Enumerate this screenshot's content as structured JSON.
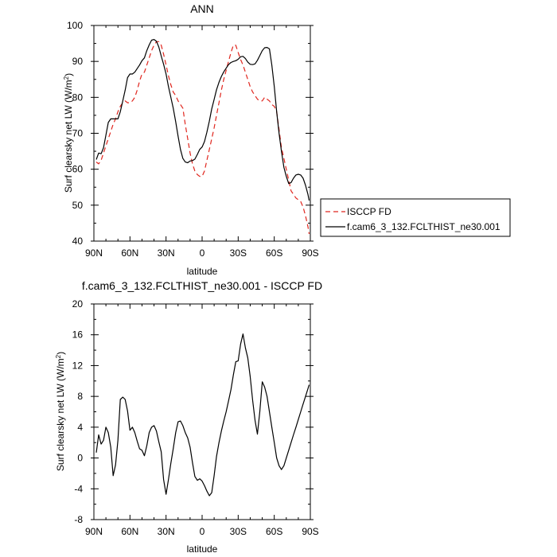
{
  "chart_data": [
    {
      "type": "line",
      "title": "ANN",
      "xlabel": "latitude",
      "ylabel": "Surf clearsky net LW (W/m²)",
      "ylabel_main": "Surf clearsky net LW (W/m",
      "ylabel_sup": "2",
      "ylabel_close": ")",
      "xlim": [
        90,
        -90
      ],
      "ylim": [
        40,
        100
      ],
      "x_ticks": [
        90,
        60,
        30,
        0,
        -30,
        -60,
        -90
      ],
      "x_tick_labels": [
        "90N",
        "60N",
        "30N",
        "0",
        "30S",
        "60S",
        "90S"
      ],
      "y_ticks": [
        40,
        50,
        60,
        70,
        80,
        90,
        100
      ],
      "y_tick_labels": [
        "40",
        "50",
        "60",
        "70",
        "80",
        "90",
        "100"
      ],
      "legend": {
        "placement": "right",
        "entries": [
          "ISCCP FD",
          "f.cam6_3_132.FCLTHIST_ne30.001"
        ]
      },
      "series": [
        {
          "name": "ISCCP FD",
          "color": "#e0261e",
          "dash": true,
          "x": [
            88,
            86,
            84,
            82,
            80,
            78,
            76,
            74,
            72,
            70,
            68,
            66,
            64,
            62,
            60,
            58,
            56,
            54,
            52,
            50,
            48,
            46,
            44,
            42,
            40,
            38,
            36,
            34,
            32,
            30,
            28,
            26,
            24,
            22,
            20,
            18,
            16,
            14,
            12,
            10,
            8,
            6,
            4,
            2,
            0,
            -2,
            -4,
            -6,
            -8,
            -10,
            -12,
            -14,
            -16,
            -18,
            -20,
            -22,
            -24,
            -26,
            -28,
            -30,
            -32,
            -34,
            -36,
            -38,
            -40,
            -42,
            -44,
            -46,
            -48,
            -50,
            -52,
            -54,
            -56,
            -58,
            -60,
            -62,
            -64,
            -66,
            -68,
            -70,
            -72,
            -74,
            -76,
            -78,
            -80,
            -82,
            -84,
            -86,
            -88,
            -89
          ],
          "y": [
            62,
            61.5,
            62.5,
            64.5,
            66.5,
            68.5,
            70.5,
            72.5,
            74,
            76,
            77.5,
            78.5,
            79,
            78.5,
            78.5,
            79,
            80,
            82,
            84.5,
            86.5,
            87,
            89,
            91,
            93,
            94.5,
            95.5,
            95.5,
            94.5,
            92,
            89,
            86,
            83.5,
            81.5,
            80.5,
            79,
            78,
            77,
            72.5,
            68.5,
            64.5,
            61.5,
            59.5,
            58.5,
            58,
            58,
            59.5,
            62.5,
            65.5,
            68.5,
            71.5,
            75,
            78.5,
            82,
            85,
            87.5,
            90,
            92.5,
            94.5,
            94.5,
            92.5,
            90.5,
            89,
            87,
            85,
            83,
            81.5,
            80.5,
            79.5,
            79,
            79,
            80,
            79.5,
            79,
            78,
            77.5,
            76,
            71,
            66,
            63,
            60,
            57,
            54,
            53,
            52,
            51.5,
            51,
            49.5,
            47,
            44,
            42
          ]
        },
        {
          "name": "f.cam6_3_132.FCLTHIST_ne30.001",
          "color": "#000000",
          "dash": false,
          "x": [
            88,
            86,
            84,
            82,
            80,
            78,
            76,
            74,
            72,
            70,
            68,
            66,
            64,
            62,
            60,
            58,
            56,
            54,
            52,
            50,
            48,
            46,
            44,
            42,
            40,
            38,
            36,
            34,
            32,
            30,
            28,
            26,
            24,
            22,
            20,
            18,
            16,
            14,
            12,
            10,
            8,
            6,
            4,
            2,
            0,
            -2,
            -4,
            -6,
            -8,
            -10,
            -12,
            -14,
            -16,
            -18,
            -20,
            -22,
            -24,
            -26,
            -28,
            -30,
            -32,
            -34,
            -36,
            -38,
            -40,
            -42,
            -44,
            -46,
            -48,
            -50,
            -52,
            -54,
            -56,
            -58,
            -60,
            -62,
            -64,
            -66,
            -68,
            -70,
            -72,
            -74,
            -76,
            -78,
            -80,
            -82,
            -84,
            -86,
            -88,
            -89
          ],
          "y": [
            62.7,
            64.5,
            64.3,
            66,
            69.5,
            73,
            74,
            74,
            74,
            74,
            76,
            79,
            82,
            85.5,
            86.5,
            86.5,
            87,
            88,
            89,
            90.2,
            91,
            93,
            94.6,
            95.9,
            96.1,
            95.6,
            94,
            91.5,
            89.2,
            86.5,
            83,
            80,
            77,
            73.2,
            69.2,
            65.5,
            63,
            62,
            61.8,
            62.3,
            62.4,
            62.8,
            64.1,
            65.5,
            66.2,
            67.7,
            70.3,
            73.4,
            76.8,
            79.4,
            82.1,
            84.2,
            85.8,
            87.1,
            88.1,
            89.1,
            89.7,
            90,
            90.2,
            90.6,
            91.3,
            91.4,
            90.8,
            89.8,
            89.2,
            89.1,
            89.3,
            90.3,
            91.6,
            93,
            93.8,
            93.9,
            93.5,
            89,
            83,
            76,
            70,
            65,
            60.5,
            58,
            56,
            56.3,
            57.5,
            58.4,
            58.6,
            58.4,
            57.5,
            55.5,
            53,
            51.3
          ]
        }
      ]
    },
    {
      "type": "line",
      "title": "f.cam6_3_132.FCLTHIST_ne30.001 - ISCCP FD",
      "xlabel": "latitude",
      "ylabel": "Surf clearsky net LW (W/m²)",
      "ylabel_main": "Surf clearsky net LW (W/m",
      "ylabel_sup": "2",
      "ylabel_close": ")",
      "xlim": [
        90,
        -90
      ],
      "ylim": [
        -8,
        20
      ],
      "x_ticks": [
        90,
        60,
        30,
        0,
        -30,
        -60,
        -90
      ],
      "x_tick_labels": [
        "90N",
        "60N",
        "30N",
        "0",
        "30S",
        "60S",
        "90S"
      ],
      "y_ticks": [
        -8,
        -4,
        0,
        4,
        8,
        12,
        16,
        20
      ],
      "y_tick_labels": [
        "-8",
        "-4",
        "0",
        "4",
        "8",
        "12",
        "16",
        "20"
      ],
      "series": [
        {
          "color": "#000000",
          "dash": false,
          "x": [
            88,
            86,
            84,
            82,
            80,
            78,
            76,
            74,
            72,
            70,
            68,
            66,
            64,
            62,
            60,
            58,
            56,
            54,
            52,
            50,
            48,
            46,
            44,
            42,
            40,
            38,
            36,
            34,
            32,
            30,
            28,
            26,
            24,
            22,
            20,
            18,
            16,
            14,
            12,
            10,
            8,
            6,
            4,
            2,
            0,
            -2,
            -4,
            -6,
            -8,
            -10,
            -12,
            -14,
            -16,
            -18,
            -20,
            -22,
            -24,
            -26,
            -28,
            -30,
            -32,
            -34,
            -36,
            -38,
            -40,
            -42,
            -44,
            -46,
            -48,
            -50,
            -52,
            -54,
            -56,
            -58,
            -60,
            -62,
            -64,
            -66,
            -68,
            -70,
            -72,
            -74,
            -76,
            -78,
            -80,
            -82,
            -84,
            -86,
            -88,
            -89
          ],
          "y": [
            0.7,
            3,
            1.8,
            2.3,
            4,
            3.3,
            1.4,
            -2.3,
            -0.9,
            2.3,
            7.6,
            7.9,
            7.6,
            6.1,
            3.6,
            4,
            3.3,
            2.2,
            1.2,
            1,
            0.3,
            1.6,
            3.3,
            4,
            4.2,
            3.5,
            2.1,
            0.8,
            -2.8,
            -4.7,
            -2.8,
            -0.7,
            1.2,
            3.3,
            4.7,
            4.8,
            4.2,
            3.3,
            2.6,
            1.4,
            -0.6,
            -2.4,
            -2.9,
            -2.7,
            -3,
            -3.6,
            -4.3,
            -4.9,
            -4.5,
            -2.3,
            0.2,
            2,
            3.5,
            4.8,
            6,
            7.4,
            8.9,
            10.8,
            12.5,
            12.6,
            14.8,
            16.1,
            14.3,
            13,
            10.6,
            7.5,
            4.9,
            3.1,
            6,
            9.9,
            9.2,
            8,
            6,
            4,
            2,
            0,
            -1,
            -1.5,
            -1,
            0,
            1,
            2,
            3,
            4,
            5,
            6,
            7,
            8,
            9,
            9.5
          ]
        }
      ]
    }
  ]
}
